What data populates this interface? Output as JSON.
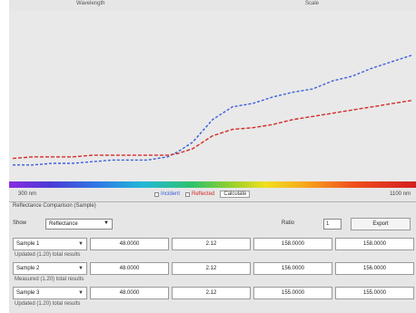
{
  "top": {
    "left_label": "Wavelength",
    "right_label": "Scale"
  },
  "chart_data": {
    "type": "line",
    "x_range": [
      300,
      1100
    ],
    "y_range": [
      0,
      1
    ],
    "series": [
      {
        "name": "Incident",
        "color": "#3b5fd8",
        "x": [
          300,
          340,
          380,
          420,
          460,
          500,
          540,
          570,
          590,
          610,
          630,
          660,
          700,
          740,
          780,
          820,
          860,
          900,
          940,
          980,
          1020,
          1060,
          1100
        ],
        "y": [
          0.08,
          0.08,
          0.09,
          0.09,
          0.1,
          0.11,
          0.11,
          0.11,
          0.12,
          0.13,
          0.16,
          0.22,
          0.36,
          0.44,
          0.46,
          0.5,
          0.53,
          0.55,
          0.6,
          0.63,
          0.68,
          0.72,
          0.76
        ]
      },
      {
        "name": "Reflected",
        "color": "#d42a2a",
        "x": [
          300,
          340,
          380,
          420,
          460,
          500,
          540,
          570,
          590,
          610,
          630,
          660,
          700,
          740,
          780,
          820,
          860,
          900,
          940,
          980,
          1020,
          1060,
          1100
        ],
        "y": [
          0.12,
          0.13,
          0.13,
          0.13,
          0.14,
          0.14,
          0.14,
          0.14,
          0.14,
          0.14,
          0.15,
          0.18,
          0.26,
          0.3,
          0.31,
          0.33,
          0.36,
          0.38,
          0.4,
          0.42,
          0.44,
          0.46,
          0.48
        ]
      }
    ]
  },
  "legend": {
    "wl_min": "300 nm",
    "wl_max": "1100 nm",
    "incident_label": "Incident",
    "reflected_label": "Reflected",
    "calc_label": "Calculate"
  },
  "section": {
    "header": "Reflectance Comparison (Sample)"
  },
  "controls": {
    "label": "Show",
    "select_value": "Reflectance",
    "right_label": "Ratio",
    "small_input": "1",
    "button_label": "Export"
  },
  "rows": [
    {
      "select": "Sample 1",
      "values": [
        "48.0000",
        "2.12",
        "158.0000",
        "158.0000"
      ],
      "caption": "Updated (1.20) total results"
    },
    {
      "select": "Sample 2",
      "values": [
        "48.0000",
        "2.12",
        "156.0000",
        "156.0000"
      ],
      "caption": "Measured (1.20) total results"
    },
    {
      "select": "Sample 3",
      "values": [
        "48.0000",
        "2.12",
        "155.0000",
        "155.0000"
      ],
      "caption": "Updated (1.20) total results"
    }
  ],
  "colors": {
    "incident": "#3b5fd8",
    "reflected": "#d42a2a",
    "panel": "#e6e6e6"
  }
}
